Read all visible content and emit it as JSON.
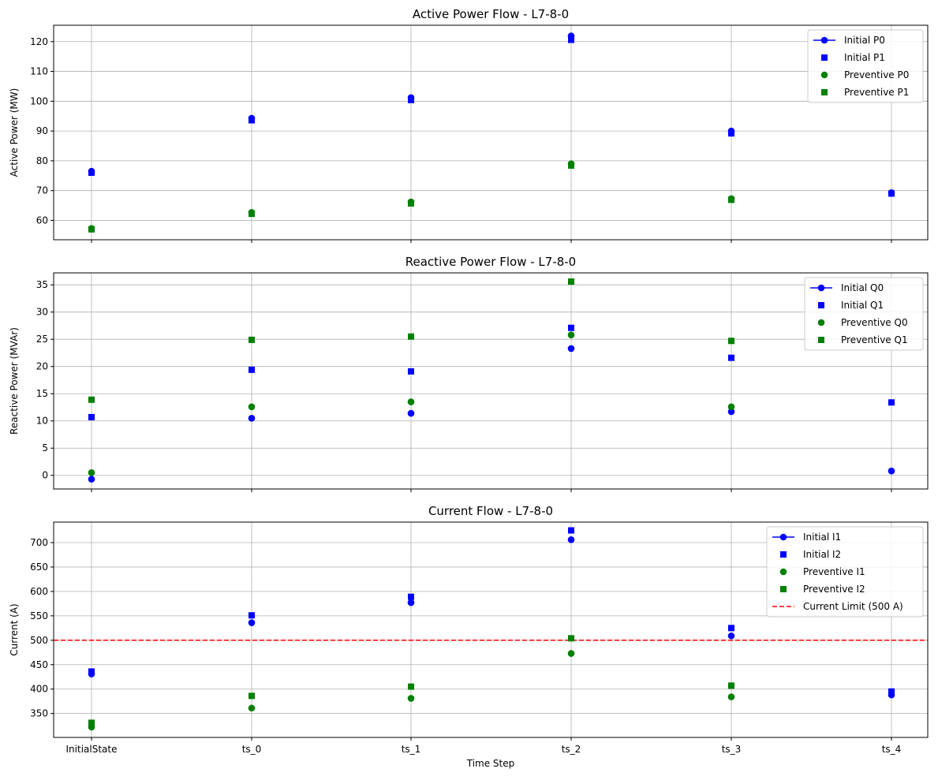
{
  "chart_data": [
    {
      "type": "scatter",
      "title": "Active Power Flow - L7-8-0",
      "xlabel": "",
      "ylabel": "Active Power (MW)",
      "categories": [
        "InitialState",
        "ts_0",
        "ts_1",
        "ts_2",
        "ts_3",
        "ts_4"
      ],
      "ylim": [
        53.5,
        125.5
      ],
      "yticks": [
        60,
        70,
        80,
        90,
        100,
        110,
        120
      ],
      "grid": true,
      "legend_position": "upper-right",
      "series": [
        {
          "name": "Initial P0",
          "color": "#0000ff",
          "marker": "circle",
          "legend_line": true,
          "values": [
            76.5,
            94.3,
            101.2,
            121.9,
            90.0,
            69.3
          ]
        },
        {
          "name": "Initial P1",
          "color": "#0000ff",
          "marker": "square",
          "legend_line": false,
          "values": [
            76.0,
            93.6,
            100.4,
            120.6,
            89.2,
            69.0
          ]
        },
        {
          "name": "Preventive P0",
          "color": "#008000",
          "marker": "circle",
          "legend_line": false,
          "values": [
            57.3,
            62.7,
            66.2,
            79.0,
            67.3,
            null
          ]
        },
        {
          "name": "Preventive P1",
          "color": "#008000",
          "marker": "square",
          "legend_line": false,
          "values": [
            57.0,
            62.2,
            65.7,
            78.4,
            66.9,
            null
          ]
        }
      ]
    },
    {
      "type": "scatter",
      "title": "Reactive Power Flow - L7-8-0",
      "xlabel": "",
      "ylabel": "Reactive Power (MVAr)",
      "categories": [
        "InitialState",
        "ts_0",
        "ts_1",
        "ts_2",
        "ts_3",
        "ts_4"
      ],
      "ylim": [
        -2.5,
        37.2
      ],
      "yticks": [
        0,
        5,
        10,
        15,
        20,
        25,
        30,
        35
      ],
      "grid": true,
      "legend_position": "upper-right",
      "series": [
        {
          "name": "Initial Q0",
          "color": "#0000ff",
          "marker": "circle",
          "legend_line": true,
          "values": [
            -0.7,
            10.5,
            11.4,
            23.3,
            11.7,
            0.8
          ]
        },
        {
          "name": "Initial Q1",
          "color": "#0000ff",
          "marker": "square",
          "legend_line": false,
          "values": [
            10.7,
            19.4,
            19.1,
            27.1,
            21.6,
            13.4
          ]
        },
        {
          "name": "Preventive Q0",
          "color": "#008000",
          "marker": "circle",
          "legend_line": false,
          "values": [
            0.5,
            12.6,
            13.5,
            25.8,
            12.6,
            null
          ]
        },
        {
          "name": "Preventive Q1",
          "color": "#008000",
          "marker": "square",
          "legend_line": false,
          "values": [
            13.9,
            24.9,
            25.5,
            35.6,
            24.7,
            null
          ]
        }
      ]
    },
    {
      "type": "scatter",
      "title": "Current Flow - L7-8-0",
      "xlabel": "Time Step",
      "ylabel": "Current (A)",
      "categories": [
        "InitialState",
        "ts_0",
        "ts_1",
        "ts_2",
        "ts_3",
        "ts_4"
      ],
      "ylim": [
        301,
        742
      ],
      "yticks": [
        350,
        400,
        450,
        500,
        550,
        600,
        650,
        700
      ],
      "grid": true,
      "legend_position": "upper-right",
      "series": [
        {
          "name": "Initial I1",
          "color": "#0000ff",
          "marker": "circle",
          "legend_line": true,
          "values": [
            431,
            536,
            577,
            706,
            509,
            388
          ]
        },
        {
          "name": "Initial I2",
          "color": "#0000ff",
          "marker": "square",
          "legend_line": false,
          "values": [
            436,
            551,
            589,
            725,
            525,
            395
          ]
        },
        {
          "name": "Preventive I1",
          "color": "#008000",
          "marker": "circle",
          "legend_line": false,
          "values": [
            322,
            361,
            381,
            473,
            384,
            null
          ]
        },
        {
          "name": "Preventive I2",
          "color": "#008000",
          "marker": "square",
          "legend_line": false,
          "values": [
            331,
            386,
            405,
            504,
            407,
            null
          ]
        }
      ],
      "reference_line": {
        "name": "Current Limit (500 A)",
        "value": 500,
        "color": "#ff0000",
        "style": "dashed"
      }
    }
  ]
}
